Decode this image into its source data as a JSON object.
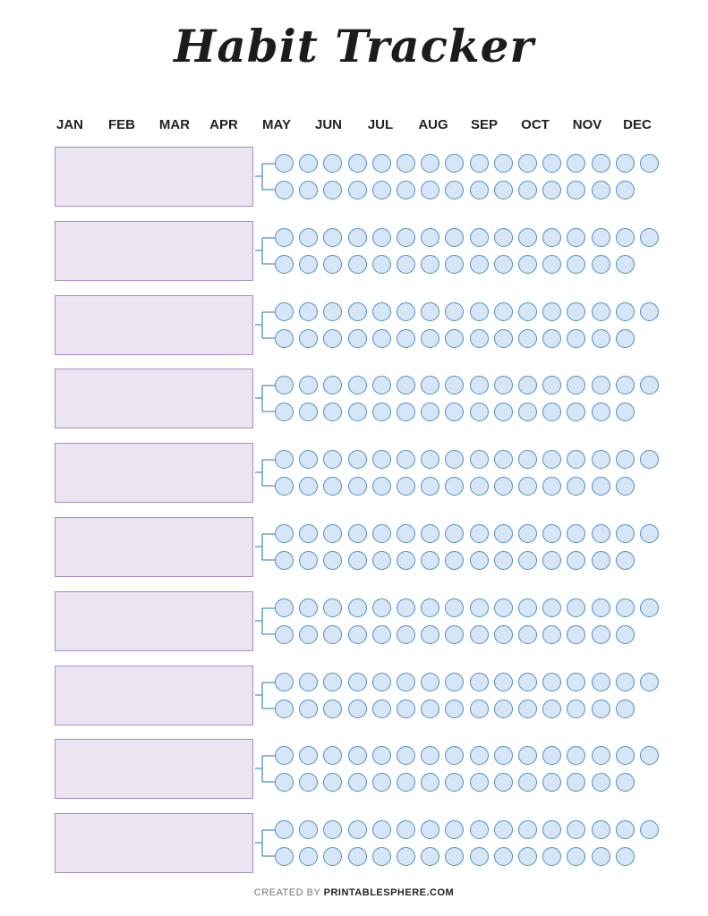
{
  "title": "Habit Tracker",
  "months": [
    "JAN",
    "FEB",
    "MAR",
    "APR",
    "MAY",
    "JUN",
    "JUL",
    "AUG",
    "SEP",
    "OCT",
    "NOV",
    "DEC"
  ],
  "habit_rows": 10,
  "circles_per_row": [
    16,
    15
  ],
  "colors": {
    "habit_box_fill": "#ede4f1",
    "habit_box_border": "#a48fcb",
    "circle_fill": "#d7e6f6",
    "circle_border": "#4f8fc0"
  },
  "footer": {
    "prefix": "CREATED BY",
    "brand": "PRINTABLESPHERE.COM"
  }
}
